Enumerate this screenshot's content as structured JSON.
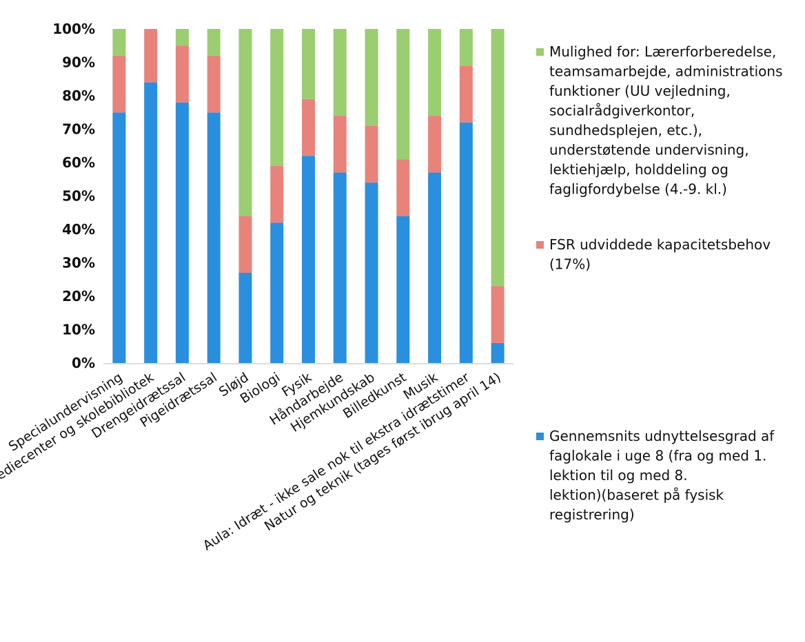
{
  "chart_data": {
    "type": "bar",
    "stacked": true,
    "title": "",
    "xlabel": "",
    "ylabel": "",
    "ylim": [
      0,
      100
    ],
    "y_ticks": [
      "0%",
      "10%",
      "20%",
      "30%",
      "40%",
      "50%",
      "60%",
      "70%",
      "80%",
      "90%",
      "100%"
    ],
    "grid": false,
    "legend_position": "right",
    "categories": [
      "Specialundervisning",
      "Mediecenter og skolebibliotek",
      "Drengeidrætssal",
      "Pigeidrætssal",
      "Sløjd",
      "Biologi",
      "Fysik",
      "Håndarbejde",
      "Hjemkundskab",
      "Billedkunst",
      "Musik",
      "Aula: Idræt - ikke sale nok til ekstra idrætstimer",
      "Natur og teknik (tages først ibrug april 14)"
    ],
    "series": [
      {
        "name": "Gennemsnits udnyttelsesgrad af faglokale i uge 8 (fra og med 1. lektion til og med 8. lektion)(baseret på fysisk registrering)",
        "color": "#2a8fde",
        "values": [
          75,
          84,
          78,
          75,
          27,
          42,
          62,
          57,
          54,
          44,
          57,
          72,
          6
        ]
      },
      {
        "name": "FSR udviddede kapacitetsbehov (17%)",
        "color": "#e8837b",
        "values": [
          17,
          16,
          17,
          17,
          17,
          17,
          17,
          17,
          17,
          17,
          17,
          17,
          17
        ]
      },
      {
        "name": "Mulighed for: Lærerforberedelse, teamsamarbejde, administrations funktioner (UU vejledning, socialrådgiverkontor, sundhedsplejen, etc.), understøtende undervisning, lektiehjælp, holddeling og fagligfordybelse (4.-9. kl.)",
        "color": "#9bcd71",
        "values": [
          8,
          0,
          5,
          8,
          56,
          41,
          21,
          26,
          29,
          39,
          26,
          11,
          77
        ]
      }
    ],
    "legend": [
      {
        "series": 2,
        "lines": [
          "Mulighed for: Lærerforberedelse,",
          "teamsamarbejde, administrations",
          "funktioner (UU vejledning,",
          "socialrådgiverkontor,",
          "sundhedsplejen, etc.),",
          "understøtende undervisning,",
          "lektiehjælp, holddeling og",
          "fagligfordybelse (4.-9. kl.)"
        ]
      },
      {
        "series": 1,
        "lines": [
          "FSR udviddede kapacitetsbehov",
          "(17%)"
        ]
      },
      {
        "series": 0,
        "lines": [
          "Gennemsnits udnyttelsesgrad af",
          "faglokale i uge 8 (fra og med 1.",
          "lektion til og med 8.",
          "lektion)(baseret på fysisk",
          "registrering)"
        ]
      }
    ]
  }
}
